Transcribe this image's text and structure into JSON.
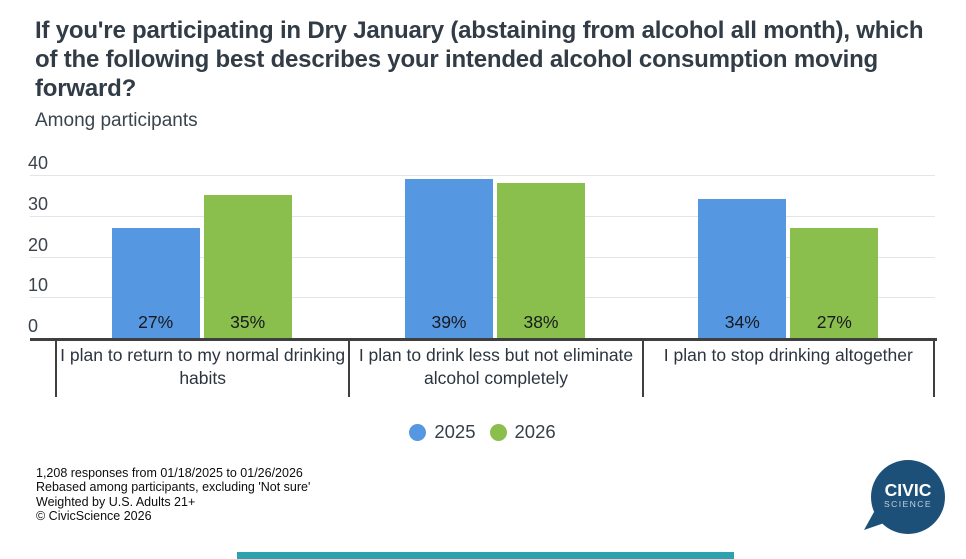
{
  "title": "If you're participating in Dry January (abstaining from alcohol all month), which of the following best describes your intended alcohol consumption moving forward?",
  "subtitle": "Among participants",
  "chart_data": {
    "type": "bar",
    "categories": [
      "I plan to return to my normal drinking habits",
      "I plan to drink less but not eliminate alcohol completely",
      "I plan to stop drinking altogether"
    ],
    "series": [
      {
        "name": "2025",
        "color": "#5697e2",
        "values": [
          27,
          39,
          34
        ]
      },
      {
        "name": "2026",
        "color": "#8abf4e",
        "values": [
          35,
          38,
          27
        ]
      }
    ],
    "value_suffix": "%",
    "ylabel": "",
    "xlabel": "",
    "ylim": [
      0,
      40
    ],
    "yticks": [
      0,
      10,
      20,
      30,
      40
    ],
    "grid": true,
    "legend_position": "bottom",
    "value_labels": [
      [
        "27%",
        "35%"
      ],
      [
        "39%",
        "38%"
      ],
      [
        "34%",
        "27%"
      ]
    ]
  },
  "legend": [
    {
      "label": "2025",
      "color": "#5697e2"
    },
    {
      "label": "2026",
      "color": "#8abf4e"
    }
  ],
  "footer": {
    "lines": [
      "1,208 responses from 01/18/2025 to 01/26/2026",
      "Rebased among participants, excluding 'Not sure'",
      "Weighted by U.S. Adults 21+",
      "© CivicScience 2026"
    ]
  },
  "logo": {
    "line1": "CIVIC",
    "line2": "SCIENCE",
    "bubble_color": "#1d5078"
  },
  "colors": {
    "series_2025": "#5697e2",
    "series_2026": "#8abf4e",
    "axis": "#3f3f3f",
    "gridline": "#e3e5e7",
    "title_text": "#323c46",
    "accent_bar": "#2aa3ae"
  }
}
